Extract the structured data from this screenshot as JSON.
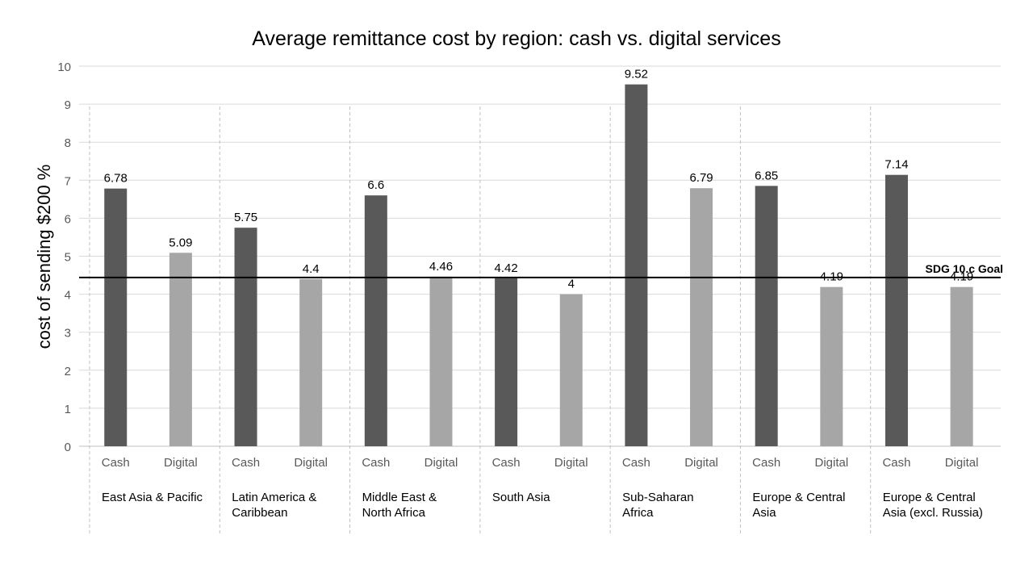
{
  "chart_data": {
    "type": "bar",
    "title": "Average remittance cost by region: cash vs. digital services",
    "ylabel": "cost of sending $200 %",
    "ylim": [
      0,
      10
    ],
    "yticks": [
      0,
      1,
      2,
      3,
      4,
      5,
      6,
      7,
      8,
      9,
      10
    ],
    "grid": true,
    "groups": [
      {
        "label": "East Asia & Pacific",
        "lines": [
          "East Asia & Pacific"
        ],
        "bars": [
          {
            "label": "Cash",
            "value": 6.78,
            "value_label": "6.78"
          },
          {
            "label": "Digital",
            "value": 5.09,
            "value_label": "5.09"
          }
        ]
      },
      {
        "label": "Latin America & Caribbean",
        "lines": [
          "Latin America &",
          "Caribbean"
        ],
        "bars": [
          {
            "label": "Cash",
            "value": 5.75,
            "value_label": "5.75"
          },
          {
            "label": "Digital",
            "value": 4.4,
            "value_label": "4.4"
          }
        ]
      },
      {
        "label": "Middle East & North Africa",
        "lines": [
          "Middle East &",
          "North Africa"
        ],
        "bars": [
          {
            "label": "Cash",
            "value": 6.6,
            "value_label": "6.6"
          },
          {
            "label": "Digital",
            "value": 4.46,
            "value_label": "4.46"
          }
        ]
      },
      {
        "label": "South Asia",
        "lines": [
          "South Asia"
        ],
        "bars": [
          {
            "label": "Cash",
            "value": 4.42,
            "value_label": "4.42"
          },
          {
            "label": "Digital",
            "value": 4,
            "value_label": "4"
          }
        ]
      },
      {
        "label": "Sub-Saharan Africa",
        "lines": [
          "Sub-Saharan",
          "Africa"
        ],
        "bars": [
          {
            "label": "Cash",
            "value": 9.52,
            "value_label": "9.52"
          },
          {
            "label": "Digital",
            "value": 6.79,
            "value_label": "6.79"
          }
        ]
      },
      {
        "label": "Europe & Central Asia",
        "lines": [
          "Europe & Central",
          "Asia"
        ],
        "bars": [
          {
            "label": "Cash",
            "value": 6.85,
            "value_label": "6.85"
          },
          {
            "label": "Digital",
            "value": 4.19,
            "value_label": "4.19"
          }
        ]
      },
      {
        "label": "Europe & Central Asia (excl. Russia)",
        "lines": [
          "Europe & Central",
          "Asia (excl.  Russia)"
        ],
        "bars": [
          {
            "label": "Cash",
            "value": 7.14,
            "value_label": "7.14"
          },
          {
            "label": "Digital",
            "value": 4.19,
            "value_label": "4.19"
          }
        ]
      }
    ],
    "reference_line": {
      "label": "SDG 10.c Goal",
      "value": 4.44
    },
    "colors": {
      "Cash": "#595959",
      "Digital": "#a6a6a6",
      "grid": "#d9d9d9",
      "reference": "#000000",
      "separator": "#bfbfbf",
      "axis_text": "#595959"
    }
  }
}
